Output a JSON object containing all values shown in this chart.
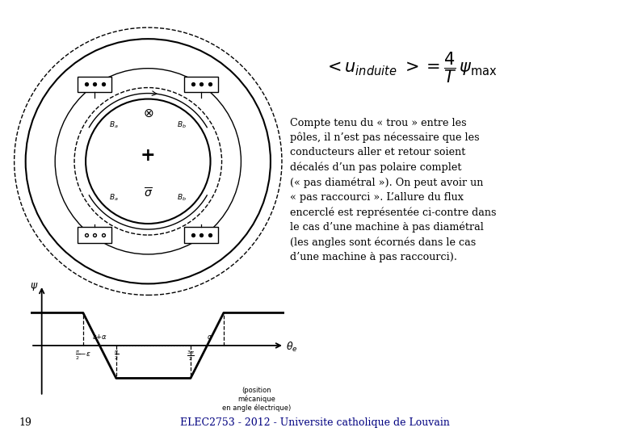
{
  "background_color": "#ffffff",
  "page_number": "19",
  "footer_text": "ELEC2753 - 2012 - Universite catholique de Louvain",
  "line_color": "#000000",
  "text_color": "#000000",
  "footer_color": "#000080",
  "description_lines": [
    "Compte tenu du « trou » entre les",
    "pôles, il n’est pas nécessaire que les",
    "conducteurs aller et retour soient",
    "décalés d’un pas polaire complet",
    "(« pas diamétral »). On peut avoir un",
    "« pas raccourci ». L’allure du flux",
    "encerclé est représentée ci-contre dans",
    "le cas d’une machine à pas diamétral",
    "(les angles sont écornés dans le cas",
    "d’une machine à pas raccourci)."
  ]
}
